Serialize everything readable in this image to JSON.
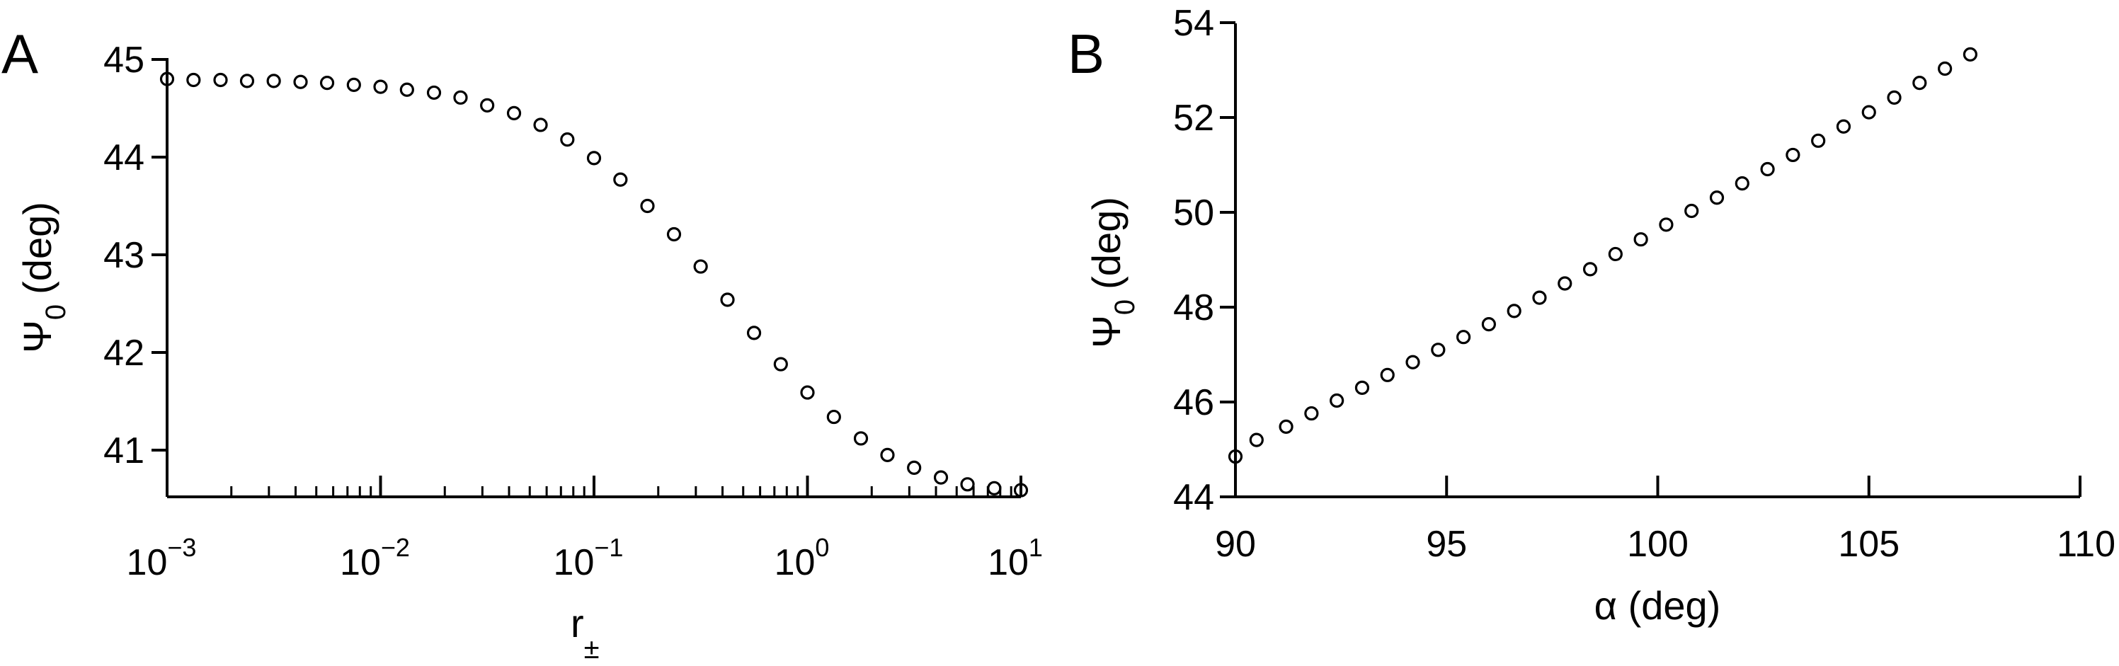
{
  "chart_data": [
    {
      "panel": "A",
      "type": "scatter",
      "xlabel": "r",
      "xlabel_sub": "±",
      "ylabel": "Ψ",
      "ylabel_sub": "0",
      "ylabel_unit": "(deg)",
      "xscale": "log",
      "xlim": [
        0.001,
        10
      ],
      "ylim": [
        40.5,
        45
      ],
      "xticks": [
        {
          "base": "10",
          "exp": "-3",
          "value": 0.001
        },
        {
          "base": "10",
          "exp": "-2",
          "value": 0.01
        },
        {
          "base": "10",
          "exp": "-1",
          "value": 0.1
        },
        {
          "base": "10",
          "exp": "0",
          "value": 1
        },
        {
          "base": "10",
          "exp": "1",
          "value": 10
        }
      ],
      "yticks": [
        "41",
        "42",
        "43",
        "44",
        "45"
      ],
      "x": [
        0.001,
        0.00133,
        0.00178,
        0.00237,
        0.00316,
        0.00422,
        0.00562,
        0.0075,
        0.01,
        0.0133,
        0.0178,
        0.0237,
        0.0316,
        0.0422,
        0.0562,
        0.075,
        0.1,
        0.133,
        0.178,
        0.237,
        0.316,
        0.422,
        0.562,
        0.75,
        1.0,
        1.33,
        1.78,
        2.37,
        3.16,
        4.22,
        5.62,
        7.5,
        10.0
      ],
      "y": [
        44.8,
        44.79,
        44.79,
        44.78,
        44.78,
        44.77,
        44.76,
        44.74,
        44.72,
        44.69,
        44.66,
        44.61,
        44.53,
        44.45,
        44.33,
        44.18,
        43.99,
        43.77,
        43.5,
        43.21,
        42.88,
        42.54,
        42.2,
        41.88,
        41.59,
        41.34,
        41.12,
        40.95,
        40.82,
        40.72,
        40.65,
        40.61,
        40.59
      ],
      "grid": false,
      "legend": "none"
    },
    {
      "panel": "B",
      "type": "scatter",
      "xlabel": "α (deg)",
      "ylabel": "Ψ",
      "ylabel_sub": "0",
      "ylabel_unit": "(deg)",
      "xlim": [
        90,
        110
      ],
      "ylim": [
        44,
        54
      ],
      "xticks": [
        "90",
        "95",
        "100",
        "105",
        "110"
      ],
      "xtick_values": [
        90,
        95,
        100,
        105,
        110
      ],
      "yticks": [
        "44",
        "46",
        "48",
        "50",
        "52",
        "54"
      ],
      "ytick_values": [
        44,
        46,
        48,
        50,
        52,
        54
      ],
      "x": [
        90.0,
        90.5,
        91.2,
        91.8,
        92.4,
        93.0,
        93.6,
        94.2,
        94.8,
        95.4,
        96.0,
        96.6,
        97.2,
        97.8,
        98.4,
        99.0,
        99.6,
        100.2,
        100.8,
        101.4,
        102.0,
        102.6,
        103.2,
        103.8,
        104.4,
        105.0,
        105.6,
        106.2,
        106.8,
        107.4
      ],
      "y": [
        44.85,
        45.2,
        45.48,
        45.76,
        46.03,
        46.3,
        46.57,
        46.84,
        47.1,
        47.37,
        47.64,
        47.92,
        48.2,
        48.5,
        48.8,
        49.12,
        49.43,
        49.74,
        50.03,
        50.31,
        50.61,
        50.91,
        51.21,
        51.51,
        51.81,
        52.11,
        52.42,
        52.73,
        53.03,
        53.33
      ],
      "grid": false,
      "legend": "none"
    }
  ]
}
